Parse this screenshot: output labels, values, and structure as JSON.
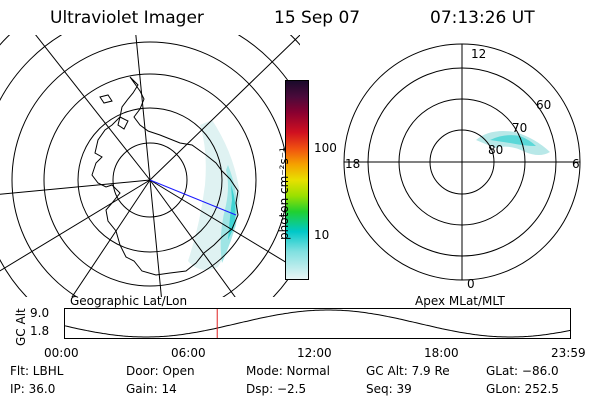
{
  "header": {
    "title": "Ultraviolet Imager",
    "date": "15 Sep 07",
    "time": "07:13:26 UT"
  },
  "left_panel": {
    "label": "Geographic Lat/Lon"
  },
  "right_panel": {
    "label": "Apex MLat/MLT",
    "mlt_labels": {
      "top": "12",
      "left": "18",
      "right": "6",
      "bottom": "0"
    },
    "lat_labels": [
      "60",
      "70",
      "80"
    ]
  },
  "colorbar": {
    "label": "photon cm⁻²s⁻¹",
    "ticks": [
      "100",
      "10"
    ]
  },
  "altitude_plot": {
    "ylabel": "GC Alt",
    "yticks": [
      "9.0",
      "1.8"
    ],
    "xticks": [
      "00:00",
      "06:00",
      "12:00",
      "18:00",
      "23:59"
    ],
    "current_time_hours": 7.22
  },
  "info": {
    "flt": "Flt: LBHL",
    "ip": "IP: 36.0",
    "door": "Door: Open",
    "gain": "Gain: 14",
    "mode": "Mode: Normal",
    "dsp": "Dsp:   −2.5",
    "gc_alt": "GC Alt: 7.9 Re",
    "seq": "Seq: 39",
    "glat": "GLat: −86.0",
    "glon": "GLon: 252.5"
  },
  "colors": {
    "auroral": "#5ad8d8",
    "view_line": "#1a1aff",
    "time_marker": "#e02020"
  }
}
